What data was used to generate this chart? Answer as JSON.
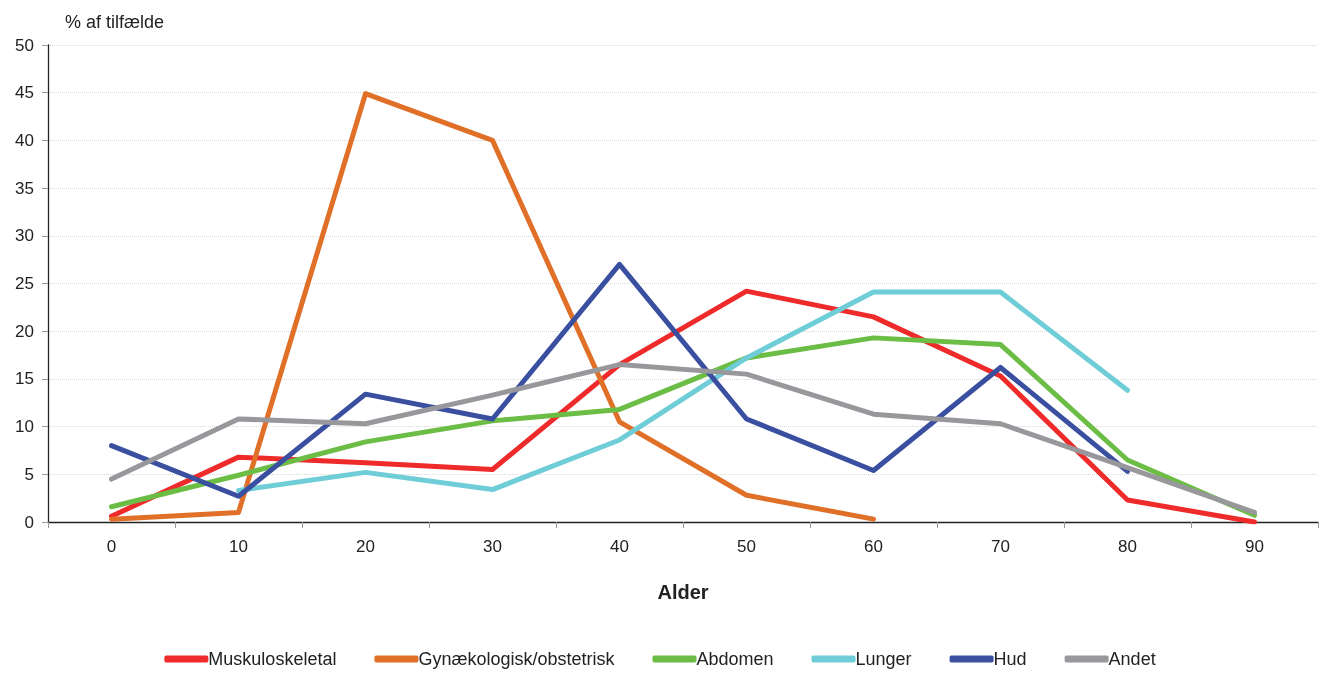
{
  "chart_data": {
    "type": "line",
    "ylabel": "% af tilfælde",
    "xlabel": "Alder",
    "categories": [
      "0",
      "10",
      "20",
      "30",
      "40",
      "50",
      "60",
      "70",
      "80",
      "90"
    ],
    "series": [
      {
        "name": "Muskuloskeletal",
        "color": "#ee2a2a",
        "values": [
          0.6,
          6.8,
          6.2,
          5.5,
          16.5,
          24.2,
          21.5,
          15.3,
          2.3,
          0
        ]
      },
      {
        "name": "Gynækologisk/obstetrisk",
        "color": "#e07028",
        "values": [
          0.3,
          1.0,
          44.9,
          40.0,
          10.5,
          2.8,
          0.3,
          null,
          null,
          null
        ]
      },
      {
        "name": "Abdomen",
        "color": "#6bbd45",
        "values": [
          1.6,
          4.9,
          8.4,
          10.6,
          11.8,
          17.2,
          19.3,
          18.6,
          6.5,
          0.7
        ]
      },
      {
        "name": "Lunger",
        "color": "#6fcdd8",
        "values": [
          null,
          3.3,
          5.2,
          3.4,
          8.6,
          17.2,
          24.1,
          24.1,
          13.8,
          null
        ]
      },
      {
        "name": "Hud",
        "color": "#3a4fa0",
        "values": [
          8.0,
          2.7,
          13.4,
          10.8,
          27.0,
          10.8,
          5.4,
          16.2,
          5.3,
          null
        ]
      },
      {
        "name": "Andet",
        "color": "#98989c",
        "values": [
          4.5,
          10.8,
          10.3,
          13.3,
          16.5,
          15.5,
          11.3,
          10.3,
          5.7,
          1.0
        ]
      }
    ],
    "ylim": [
      0,
      50
    ],
    "yticks": [
      0,
      5,
      10,
      15,
      20,
      25,
      30,
      35,
      40,
      45,
      50
    ],
    "grid": "y",
    "legend": "bottom",
    "marker": "none",
    "line_style": "solid"
  }
}
